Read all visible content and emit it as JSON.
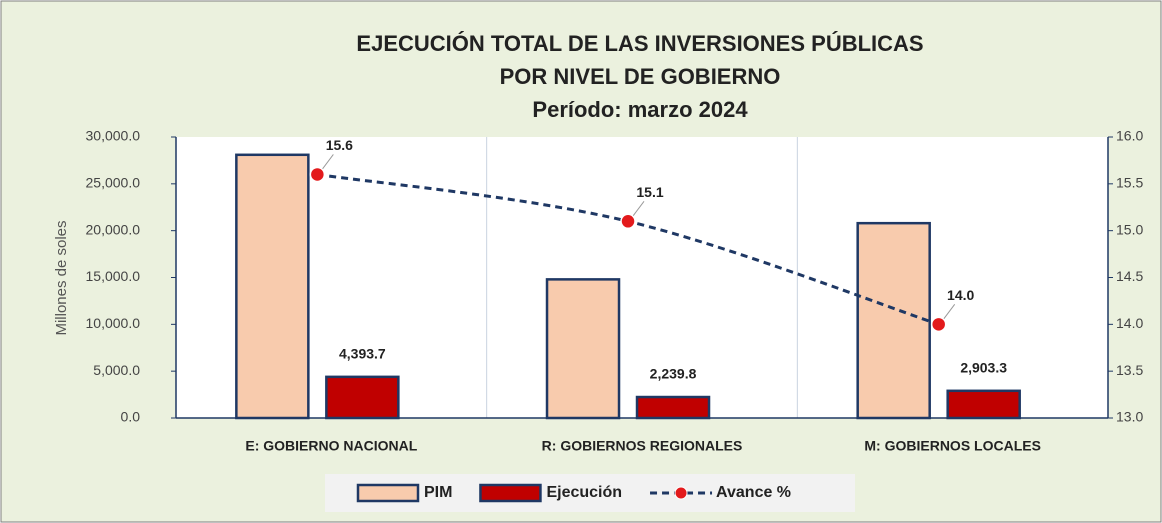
{
  "chart_data": {
    "type": "bar",
    "title": [
      "EJECUCIÓN TOTAL DE LAS INVERSIONES PÚBLICAS",
      "POR NIVEL DE  GOBIERNO",
      "Período:  marzo 2024"
    ],
    "y_label": "Millones de soles",
    "categories": [
      "E: GOBIERNO NACIONAL",
      "R: GOBIERNOS REGIONALES",
      "M: GOBIERNOS LOCALES"
    ],
    "series": [
      {
        "name": "PIM",
        "color": "#f8cbad",
        "values": [
          28100,
          14800,
          20800
        ]
      },
      {
        "name": "Ejecución",
        "color": "#c00000",
        "values": [
          4393.7,
          2239.8,
          2903.3
        ],
        "value_labels": [
          "4,393.7",
          "2,239.8",
          "2,903.3"
        ]
      },
      {
        "name": "Avance %",
        "color": "#1f3864",
        "marker_color": "#e31a1c",
        "axis": "y2",
        "values": [
          15.6,
          15.1,
          14.0
        ],
        "value_labels": [
          "15.6",
          "15.1",
          "14.0"
        ]
      }
    ],
    "ylim": [
      0,
      30000
    ],
    "yticks": [
      {
        "value": 0,
        "label": "0.0"
      },
      {
        "value": 5000,
        "label": "5,000.0"
      },
      {
        "value": 10000,
        "label": "10,000.0"
      },
      {
        "value": 15000,
        "label": "15,000.0"
      },
      {
        "value": 20000,
        "label": "20,000.0"
      },
      {
        "value": 25000,
        "label": "25,000.0"
      },
      {
        "value": 30000,
        "label": "30,000.0"
      }
    ],
    "y2lim": [
      13,
      16
    ],
    "y2ticks": [
      {
        "value": 13,
        "label": "13.0"
      },
      13.5,
      {
        "value": 14,
        "label": "14.0"
      },
      14.5,
      {
        "value": 15,
        "label": "15.0"
      },
      15.5,
      {
        "value": 16,
        "label": "16.0"
      }
    ],
    "legend": "bottom"
  }
}
